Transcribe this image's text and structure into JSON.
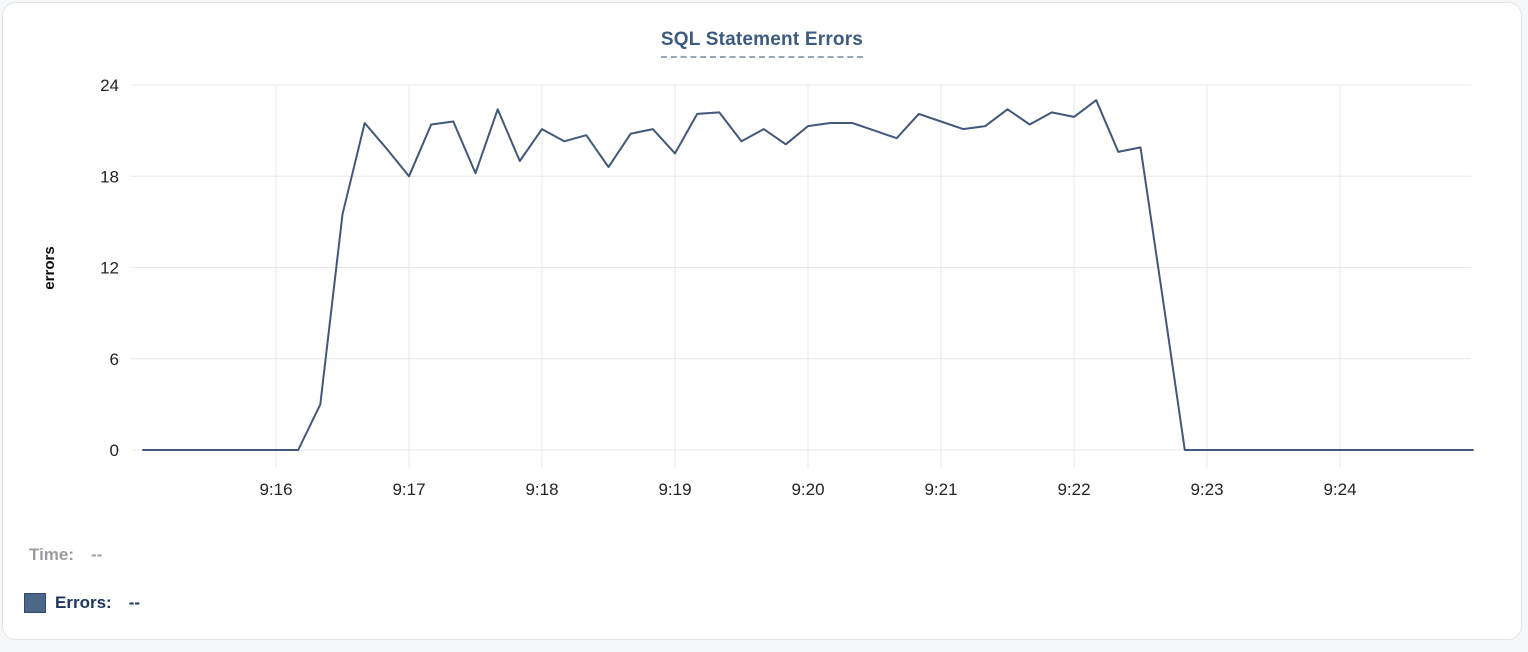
{
  "card": {
    "title": "SQL Statement Errors"
  },
  "legend": {
    "time_label": "Time:",
    "time_value": "--",
    "errors_label": "Errors:",
    "errors_value": "--",
    "swatch_color": "#4d6687"
  },
  "colors": {
    "line": "#41587a",
    "grid": "#e8e8e8",
    "tick_text": "#242424",
    "title_text": "#3d5a80",
    "title_underline": "#9aa6b8",
    "legend_time_text": "#9b9ca0",
    "legend_errors_text": "#1c345f",
    "card_border": "#e3e4e6"
  },
  "chart_data": {
    "type": "line",
    "title": "SQL Statement Errors",
    "xlabel": "",
    "ylabel": "errors",
    "ylim": [
      0,
      24
    ],
    "y_ticks": [
      0,
      6,
      12,
      18,
      24
    ],
    "x_ticks": [
      "9:16",
      "9:17",
      "9:18",
      "9:19",
      "9:20",
      "9:21",
      "9:22",
      "9:23",
      "9:24"
    ],
    "x_range": [
      "9:15:00",
      "9:25:00"
    ],
    "grid": true,
    "legend_position": "bottom-left",
    "series": [
      {
        "name": "Errors",
        "color": "#41587a",
        "points": [
          [
            "9:15:00",
            0
          ],
          [
            "9:15:10",
            0
          ],
          [
            "9:15:20",
            0
          ],
          [
            "9:15:30",
            0
          ],
          [
            "9:15:40",
            0
          ],
          [
            "9:15:50",
            0
          ],
          [
            "9:16:00",
            0
          ],
          [
            "9:16:10",
            0
          ],
          [
            "9:16:20",
            3
          ],
          [
            "9:16:30",
            15.5
          ],
          [
            "9:16:40",
            21.5
          ],
          [
            "9:16:50",
            19.8
          ],
          [
            "9:17:00",
            18
          ],
          [
            "9:17:10",
            21.4
          ],
          [
            "9:17:20",
            21.6
          ],
          [
            "9:17:30",
            18.2
          ],
          [
            "9:17:40",
            22.4
          ],
          [
            "9:17:50",
            19
          ],
          [
            "9:18:00",
            21.1
          ],
          [
            "9:18:10",
            20.3
          ],
          [
            "9:18:20",
            20.7
          ],
          [
            "9:18:30",
            18.6
          ],
          [
            "9:18:40",
            20.8
          ],
          [
            "9:18:50",
            21.1
          ],
          [
            "9:19:00",
            19.5
          ],
          [
            "9:19:10",
            22.1
          ],
          [
            "9:19:20",
            22.2
          ],
          [
            "9:19:30",
            20.3
          ],
          [
            "9:19:40",
            21.1
          ],
          [
            "9:19:50",
            20.1
          ],
          [
            "9:20:00",
            21.3
          ],
          [
            "9:20:10",
            21.5
          ],
          [
            "9:20:20",
            21.5
          ],
          [
            "9:20:30",
            21.0
          ],
          [
            "9:20:40",
            20.5
          ],
          [
            "9:20:50",
            22.1
          ],
          [
            "9:21:00",
            21.6
          ],
          [
            "9:21:10",
            21.1
          ],
          [
            "9:21:20",
            21.3
          ],
          [
            "9:21:30",
            22.4
          ],
          [
            "9:21:40",
            21.4
          ],
          [
            "9:21:50",
            22.2
          ],
          [
            "9:22:00",
            21.9
          ],
          [
            "9:22:10",
            23
          ],
          [
            "9:22:20",
            19.6
          ],
          [
            "9:22:30",
            19.9
          ],
          [
            "9:22:40",
            10
          ],
          [
            "9:22:50",
            0
          ],
          [
            "9:23:00",
            0
          ],
          [
            "9:23:10",
            0
          ],
          [
            "9:23:20",
            0
          ],
          [
            "9:23:30",
            0
          ],
          [
            "9:23:40",
            0
          ],
          [
            "9:23:50",
            0
          ],
          [
            "9:24:00",
            0
          ],
          [
            "9:24:10",
            0
          ],
          [
            "9:24:20",
            0
          ],
          [
            "9:24:30",
            0
          ],
          [
            "9:24:40",
            0
          ],
          [
            "9:24:50",
            0
          ],
          [
            "9:25:00",
            0
          ]
        ]
      }
    ]
  }
}
